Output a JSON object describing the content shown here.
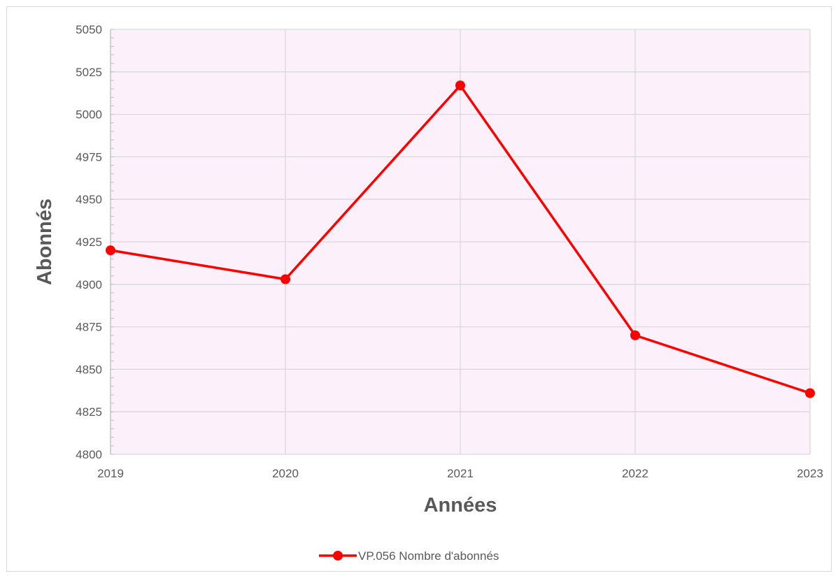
{
  "chart_data": {
    "type": "line",
    "title": "",
    "xlabel": "Années",
    "ylabel": "Abonnés",
    "categories": [
      "2019",
      "2020",
      "2021",
      "2022",
      "2023"
    ],
    "series": [
      {
        "name": "VP.056 Nombre d'abonnés",
        "values": [
          4920,
          4903,
          5017,
          4870,
          4836
        ],
        "color": "#ff0000"
      }
    ],
    "ylim": [
      4800,
      5050
    ],
    "yticks": [
      4800,
      4825,
      4850,
      4875,
      4900,
      4925,
      4950,
      4975,
      5000,
      5025,
      5050
    ],
    "grid": true,
    "legend_position": "bottom",
    "plot_background": "#fcf0fb",
    "grid_color": "#d9d9d9"
  }
}
